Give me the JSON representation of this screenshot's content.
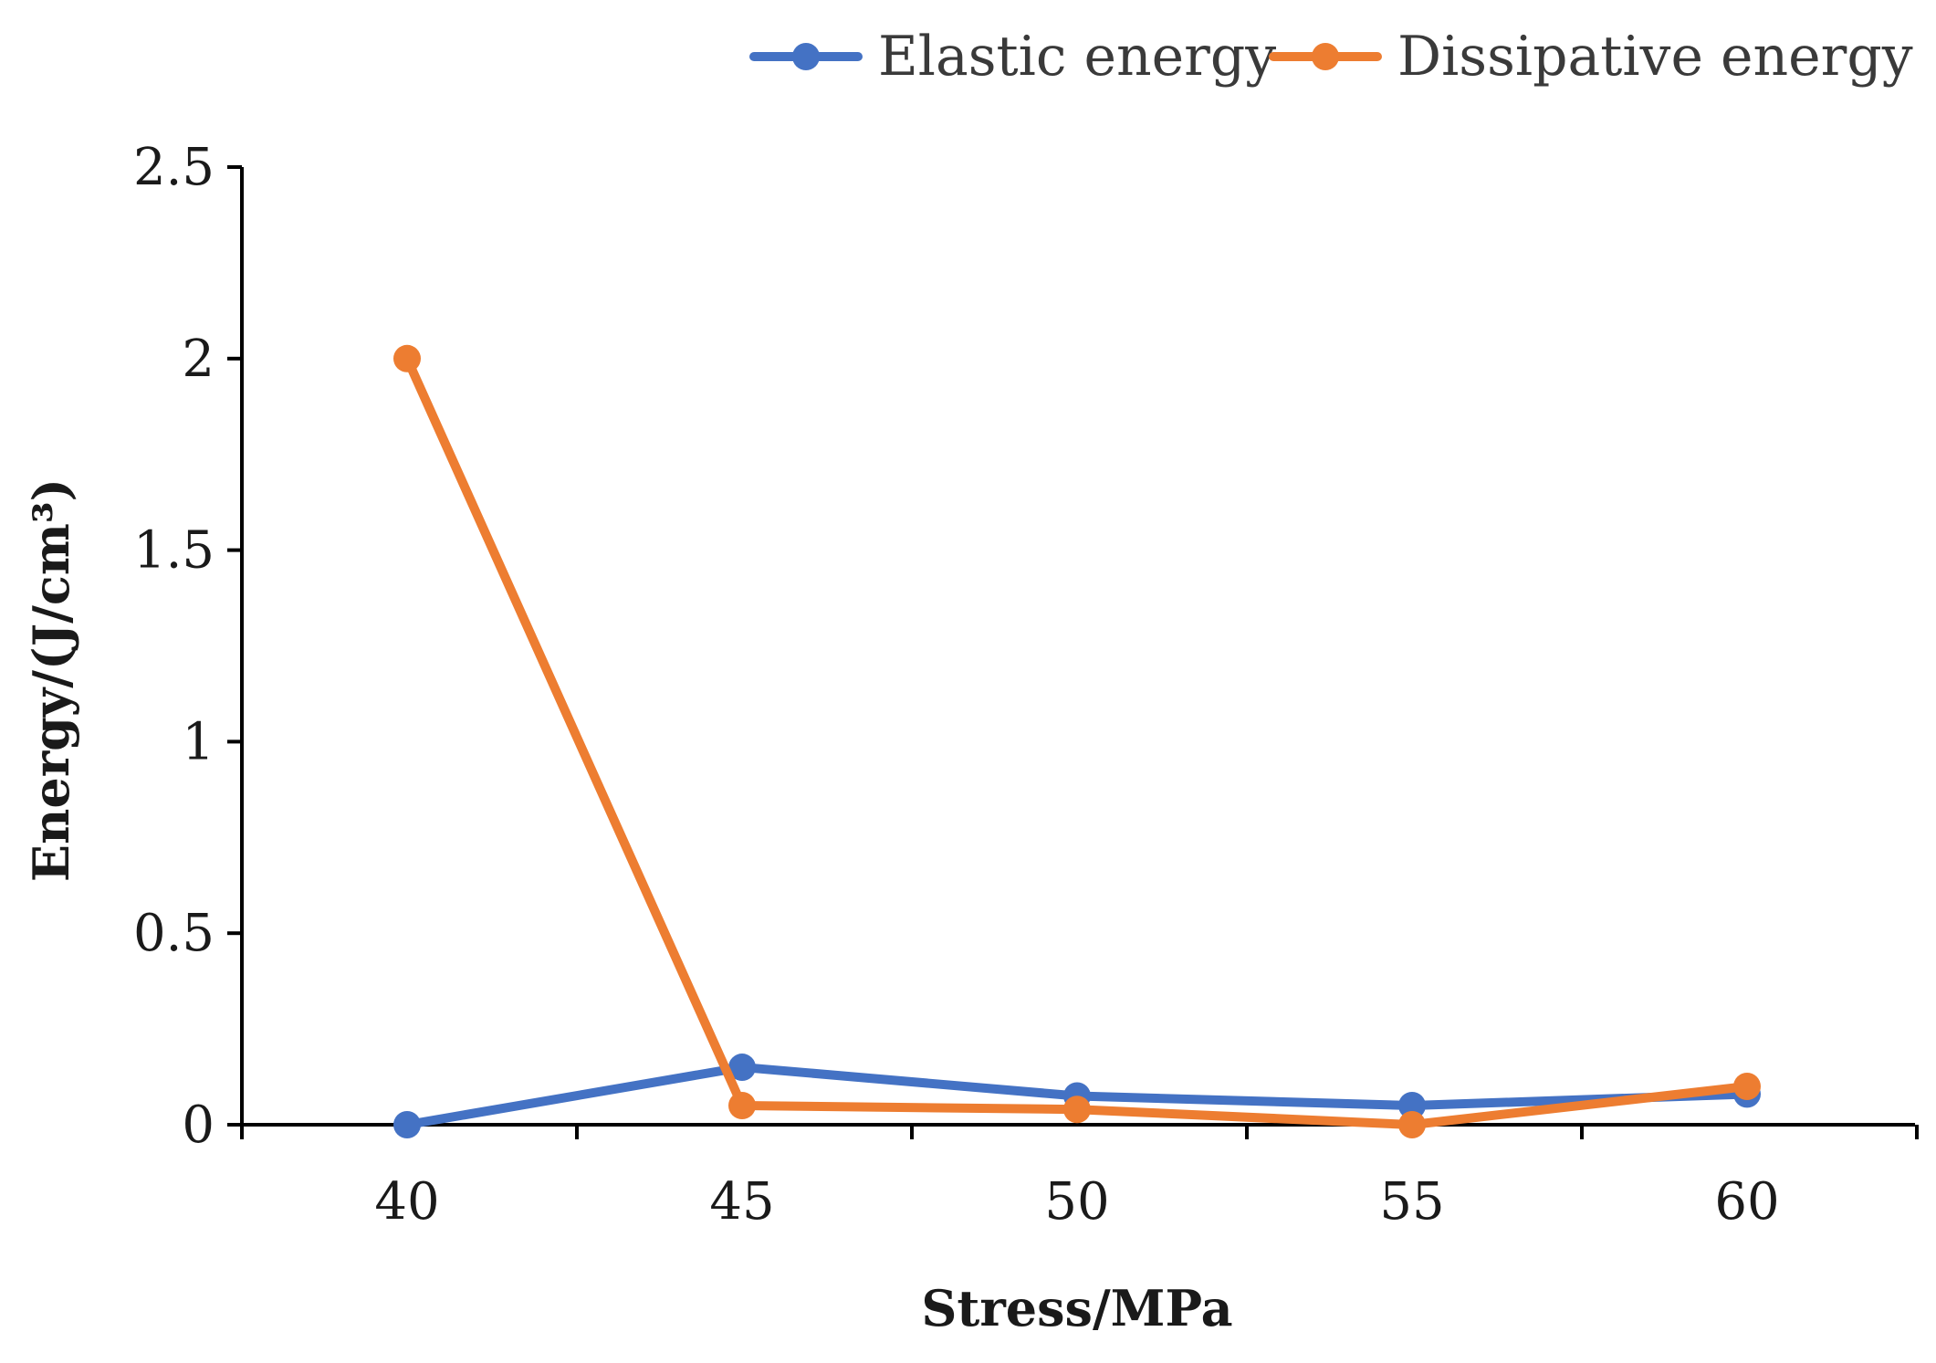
{
  "chart_data": {
    "type": "line",
    "title": "",
    "xlabel": "Stress/MPa",
    "ylabel": "Energy/(J/cm³)",
    "categories": [
      "40",
      "45",
      "50",
      "55",
      "60"
    ],
    "ylim": [
      0,
      2.5
    ],
    "yticks": [
      0,
      0.5,
      1,
      1.5,
      2,
      2.5
    ],
    "ytick_labels": [
      "0",
      "0.5",
      "1",
      "1.5",
      "2",
      "2.5"
    ],
    "grid": false,
    "legend_position": "top-right",
    "series": [
      {
        "name": "Elastic energy",
        "color": "#4472C4",
        "values": [
          0.0,
          0.15,
          0.075,
          0.05,
          0.08
        ]
      },
      {
        "name": "Dissipative energy",
        "color": "#ED7D31",
        "values": [
          2.0,
          0.05,
          0.04,
          0.0,
          0.1
        ]
      }
    ]
  }
}
